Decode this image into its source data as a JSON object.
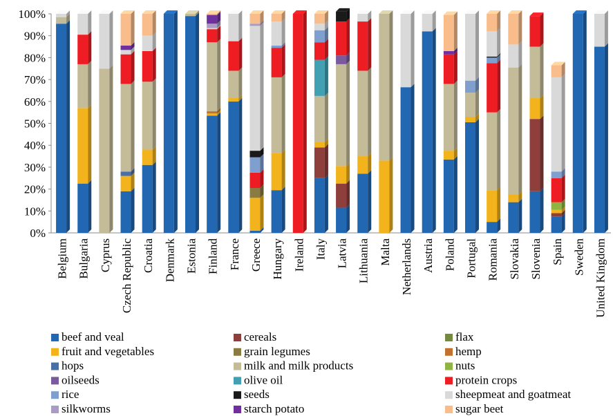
{
  "chart_data": {
    "type": "bar",
    "stacked": true,
    "normalized": true,
    "ylim": [
      0,
      100
    ],
    "y_ticks": [
      "0%",
      "10%",
      "20%",
      "30%",
      "40%",
      "50%",
      "60%",
      "70%",
      "80%",
      "90%",
      "100%"
    ],
    "legend_position": "bottom",
    "grid": false,
    "categories": [
      "Belgium",
      "Bulgaria",
      "Cyprus",
      "Czech Republic",
      "Croatia",
      "Denmark",
      "Estonia",
      "Finland",
      "France",
      "Greece",
      "Hungary",
      "Ireland",
      "Italy",
      "Latvia",
      "Lithuania",
      "Malta",
      "Netherlands",
      "Austria",
      "Poland",
      "Portugal",
      "Romania",
      "Slovakia",
      "Slovenia",
      "Spain",
      "Sweden",
      "United Kingdom"
    ],
    "series": [
      {
        "name": "beef and veal",
        "color": "#2167b2",
        "values": [
          95.5,
          22.5,
          0,
          19,
          31,
          100,
          99,
          53.5,
          60,
          1,
          19.5,
          0,
          25,
          11.5,
          27,
          0,
          66.5,
          92,
          33.5,
          50.5,
          5,
          14,
          19,
          7.5,
          100,
          85
        ]
      },
      {
        "name": "cereals",
        "color": "#8e3e3b",
        "values": [
          0,
          0,
          0,
          0,
          0,
          0,
          0,
          0,
          0,
          0,
          0,
          0,
          14,
          11,
          0,
          0,
          0,
          0,
          0,
          0,
          0,
          0,
          33,
          1.5,
          0,
          0
        ]
      },
      {
        "name": "flax",
        "color": "#748a3c",
        "values": [
          0,
          0,
          0,
          0,
          0,
          0,
          0,
          0,
          0,
          0,
          0,
          0,
          0,
          0,
          0,
          0,
          0,
          0,
          0,
          0,
          0,
          0,
          0,
          0,
          0,
          0
        ]
      },
      {
        "name": "fruit and vegetables",
        "color": "#f2b31c",
        "values": [
          0,
          34.5,
          0,
          7,
          7,
          0,
          0,
          1,
          1.5,
          15,
          17,
          0,
          2.5,
          8,
          8,
          33,
          0,
          0,
          4,
          2.5,
          14.5,
          3.5,
          9.5,
          1.5,
          0,
          0
        ]
      },
      {
        "name": "grain legumes",
        "color": "#8a7b43",
        "values": [
          0,
          0,
          0,
          0,
          0,
          0,
          0,
          0,
          0,
          4.5,
          0,
          0,
          0,
          0,
          0,
          0,
          0,
          0,
          0,
          0,
          0,
          0,
          0,
          0,
          0,
          0
        ]
      },
      {
        "name": "hemp",
        "color": "#c2722e",
        "values": [
          0,
          0,
          0,
          0,
          0,
          0,
          0,
          1,
          0,
          0,
          0,
          0,
          0,
          0,
          0,
          0,
          0,
          0,
          0,
          0,
          0,
          0,
          0,
          0,
          0,
          0
        ]
      },
      {
        "name": "hops",
        "color": "#4a6fa7",
        "values": [
          0,
          0,
          0,
          2,
          0,
          0,
          0,
          0,
          0,
          0,
          0,
          0,
          0,
          0,
          0,
          0,
          0,
          0,
          0,
          0,
          0,
          0,
          0,
          0,
          0,
          0
        ]
      },
      {
        "name": "milk and milk products",
        "color": "#c4bb98",
        "values": [
          3,
          20,
          75,
          40,
          31,
          0,
          1,
          31.5,
          12.5,
          0,
          34.5,
          0,
          21,
          46.5,
          39,
          67,
          0,
          0,
          30.5,
          11,
          35.5,
          58,
          23.5,
          0,
          0,
          0
        ]
      },
      {
        "name": "nuts",
        "color": "#8fb441",
        "values": [
          0,
          0,
          0,
          0,
          0,
          0,
          0,
          0,
          0,
          0,
          0,
          0,
          0,
          0,
          0,
          0,
          0,
          0,
          0,
          0,
          0,
          0,
          0,
          3.5,
          0,
          0
        ]
      },
      {
        "name": "oilseeds",
        "color": "#7a5a9c",
        "values": [
          0,
          0,
          0,
          0,
          0,
          0,
          0,
          0,
          0,
          0,
          0,
          0,
          0,
          4,
          0,
          0,
          0,
          0,
          0,
          0,
          0,
          0,
          0,
          0,
          0,
          0
        ]
      },
      {
        "name": "olive oil",
        "color": "#41a1b3",
        "values": [
          0,
          0,
          0,
          0,
          0,
          0,
          0,
          0,
          0,
          0,
          0,
          0,
          16.5,
          0,
          0,
          0,
          0,
          0,
          0,
          0,
          0,
          0,
          0,
          0,
          0,
          0
        ]
      },
      {
        "name": "protein crops",
        "color": "#ee1d23",
        "values": [
          0,
          13.5,
          0,
          13.5,
          14,
          0,
          0,
          6,
          13.5,
          7,
          13.5,
          100,
          8,
          15.5,
          22.5,
          0,
          0,
          0,
          13.5,
          0,
          22.5,
          0,
          14,
          11,
          0,
          0
        ]
      },
      {
        "name": "rice",
        "color": "#7f9fcf",
        "values": [
          0,
          0,
          0,
          0,
          0,
          0,
          0,
          0,
          0,
          7,
          1,
          0,
          5.5,
          0,
          0,
          0,
          0,
          0,
          0,
          5.5,
          2.5,
          0,
          0,
          3,
          0,
          0
        ]
      },
      {
        "name": "seeds",
        "color": "#1a1a1a",
        "values": [
          0,
          0,
          0,
          0,
          0,
          0,
          0,
          0,
          0,
          3,
          0,
          0,
          0,
          4.5,
          0,
          0,
          0,
          0,
          0,
          0,
          0.5,
          0,
          0,
          0,
          0,
          0
        ]
      },
      {
        "name": "sheepmeat and goatmeat",
        "color": "#d9d9d9",
        "values": [
          1.5,
          9.5,
          25,
          2,
          7,
          0,
          0,
          0.5,
          12.5,
          57,
          11,
          0,
          3,
          0,
          3.5,
          0,
          33.5,
          8,
          0,
          30.5,
          11.5,
          10.5,
          0,
          43,
          0,
          15
        ]
      },
      {
        "name": "silkworms",
        "color": "#a99bc3",
        "values": [
          0,
          0,
          0,
          0,
          0,
          0,
          0,
          2,
          0,
          1,
          0,
          0,
          0,
          0,
          0,
          0,
          0,
          0,
          0,
          0,
          0,
          0,
          0,
          0,
          0,
          0
        ]
      },
      {
        "name": "starch potato",
        "color": "#6f2f9e",
        "values": [
          0,
          0,
          0,
          2,
          0,
          0,
          0,
          4,
          0,
          0,
          0,
          0,
          0,
          0,
          0,
          0,
          0,
          0,
          1.5,
          0,
          0,
          0,
          0,
          0,
          0,
          0
        ]
      },
      {
        "name": "sugar beet",
        "color": "#f9bd8c",
        "values": [
          0,
          0,
          0,
          14.5,
          10,
          0,
          0,
          0.5,
          0,
          4.5,
          3.5,
          0,
          4.5,
          0,
          0,
          0,
          0,
          0,
          16.5,
          0,
          8,
          14,
          0,
          5.5,
          0,
          0
        ]
      }
    ]
  }
}
